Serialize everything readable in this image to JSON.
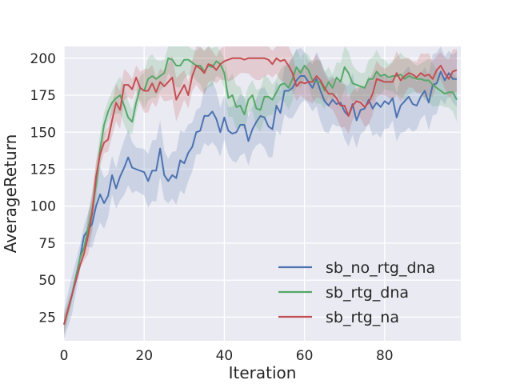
{
  "chart_data": {
    "type": "line",
    "title": "",
    "xlabel": "Iteration",
    "ylabel": "AverageReturn",
    "xlim": [
      0,
      99
    ],
    "ylim": [
      9,
      208
    ],
    "xticks": [
      0,
      20,
      40,
      60,
      80
    ],
    "yticks": [
      25,
      50,
      75,
      100,
      125,
      150,
      175,
      200
    ],
    "grid": true,
    "legend_position": "lower-right",
    "background": "#eaeaf2",
    "series": [
      {
        "name": "sb_no_rtg_dna",
        "color": "#4c72b0",
        "points": [
          [
            0,
            20
          ],
          [
            2,
            40
          ],
          [
            4,
            65
          ],
          [
            5,
            80
          ],
          [
            7,
            88
          ],
          [
            8,
            100
          ],
          [
            9,
            108
          ],
          [
            10,
            102
          ],
          [
            11,
            107
          ],
          [
            12,
            121
          ],
          [
            13,
            112
          ],
          [
            14,
            120
          ],
          [
            15,
            126
          ],
          [
            16,
            133
          ],
          [
            17,
            126
          ],
          [
            18,
            125
          ],
          [
            20,
            123
          ],
          [
            21,
            117
          ],
          [
            22,
            124
          ],
          [
            23,
            124
          ],
          [
            24,
            139
          ],
          [
            25,
            121
          ],
          [
            26,
            117
          ],
          [
            27,
            121
          ],
          [
            28,
            119
          ],
          [
            29,
            131
          ],
          [
            30,
            129
          ],
          [
            31,
            136
          ],
          [
            32,
            140
          ],
          [
            33,
            150
          ],
          [
            34,
            151
          ],
          [
            35,
            161
          ],
          [
            36,
            161
          ],
          [
            37,
            164
          ],
          [
            38,
            159
          ],
          [
            39,
            150
          ],
          [
            40,
            160
          ],
          [
            41,
            151
          ],
          [
            42,
            149
          ],
          [
            43,
            150
          ],
          [
            44,
            155
          ],
          [
            45,
            155
          ],
          [
            46,
            144
          ],
          [
            47,
            152
          ],
          [
            48,
            157
          ],
          [
            49,
            161
          ],
          [
            50,
            160
          ],
          [
            51,
            154
          ],
          [
            52,
            152
          ],
          [
            53,
            168
          ],
          [
            54,
            163
          ],
          [
            55,
            178
          ],
          [
            56,
            178
          ],
          [
            57,
            180
          ],
          [
            58,
            185
          ],
          [
            59,
            188
          ],
          [
            60,
            188
          ],
          [
            61,
            184
          ],
          [
            62,
            180
          ],
          [
            63,
            186
          ],
          [
            64,
            178
          ],
          [
            65,
            171
          ],
          [
            66,
            168
          ],
          [
            67,
            172
          ],
          [
            68,
            169
          ],
          [
            69,
            170
          ],
          [
            70,
            164
          ],
          [
            71,
            161
          ],
          [
            72,
            169
          ],
          [
            73,
            158
          ],
          [
            74,
            165
          ],
          [
            75,
            166
          ],
          [
            76,
            172
          ],
          [
            77,
            166
          ],
          [
            78,
            170
          ],
          [
            79,
            167
          ],
          [
            80,
            171
          ],
          [
            81,
            169
          ],
          [
            82,
            173
          ],
          [
            83,
            160
          ],
          [
            84,
            168
          ],
          [
            85,
            171
          ],
          [
            86,
            174
          ],
          [
            87,
            169
          ],
          [
            88,
            168
          ],
          [
            89,
            174
          ],
          [
            90,
            178
          ],
          [
            91,
            170
          ],
          [
            92,
            182
          ],
          [
            93,
            183
          ],
          [
            94,
            191
          ],
          [
            95,
            185
          ],
          [
            96,
            190
          ],
          [
            97,
            186
          ],
          [
            98,
            186
          ]
        ]
      },
      {
        "name": "sb_rtg_dna",
        "color": "#55a868",
        "points": [
          [
            0,
            20
          ],
          [
            2,
            40
          ],
          [
            4,
            65
          ],
          [
            5,
            72
          ],
          [
            6,
            85
          ],
          [
            7,
            97
          ],
          [
            8,
            115
          ],
          [
            9,
            138
          ],
          [
            10,
            155
          ],
          [
            11,
            164
          ],
          [
            12,
            170
          ],
          [
            13,
            173
          ],
          [
            14,
            175
          ],
          [
            15,
            168
          ],
          [
            16,
            160
          ],
          [
            17,
            157
          ],
          [
            18,
            170
          ],
          [
            19,
            180
          ],
          [
            20,
            178
          ],
          [
            21,
            186
          ],
          [
            22,
            188
          ],
          [
            23,
            186
          ],
          [
            24,
            188
          ],
          [
            25,
            190
          ],
          [
            26,
            200
          ],
          [
            27,
            199
          ],
          [
            28,
            195
          ],
          [
            29,
            195
          ],
          [
            30,
            199
          ],
          [
            31,
            199
          ],
          [
            32,
            197
          ],
          [
            33,
            195
          ],
          [
            34,
            195
          ],
          [
            35,
            191
          ],
          [
            36,
            195
          ],
          [
            37,
            194
          ],
          [
            38,
            198
          ],
          [
            39,
            196
          ],
          [
            40,
            190
          ],
          [
            41,
            173
          ],
          [
            42,
            175
          ],
          [
            43,
            167
          ],
          [
            44,
            168
          ],
          [
            45,
            162
          ],
          [
            46,
            172
          ],
          [
            47,
            175
          ],
          [
            48,
            166
          ],
          [
            49,
            165
          ],
          [
            50,
            174
          ],
          [
            51,
            174
          ],
          [
            52,
            172
          ],
          [
            53,
            177
          ],
          [
            54,
            182
          ],
          [
            55,
            183
          ],
          [
            56,
            180
          ],
          [
            57,
            186
          ],
          [
            58,
            194
          ],
          [
            59,
            190
          ],
          [
            60,
            195
          ],
          [
            61,
            192
          ],
          [
            62,
            185
          ],
          [
            63,
            184
          ],
          [
            64,
            184
          ],
          [
            65,
            178
          ],
          [
            66,
            184
          ],
          [
            67,
            180
          ],
          [
            68,
            187
          ],
          [
            69,
            184
          ],
          [
            70,
            194
          ],
          [
            71,
            190
          ],
          [
            72,
            183
          ],
          [
            73,
            182
          ],
          [
            74,
            181
          ],
          [
            75,
            180
          ],
          [
            76,
            186
          ],
          [
            77,
            186
          ],
          [
            78,
            191
          ],
          [
            79,
            188
          ],
          [
            80,
            189
          ],
          [
            81,
            187
          ],
          [
            82,
            188
          ],
          [
            83,
            188
          ],
          [
            84,
            189
          ],
          [
            85,
            186
          ],
          [
            86,
            188
          ],
          [
            87,
            187
          ],
          [
            88,
            186
          ],
          [
            89,
            186
          ],
          [
            90,
            185
          ],
          [
            91,
            185
          ],
          [
            92,
            182
          ],
          [
            93,
            180
          ],
          [
            94,
            178
          ],
          [
            95,
            176
          ],
          [
            96,
            177
          ],
          [
            97,
            177
          ],
          [
            98,
            172
          ]
        ]
      },
      {
        "name": "sb_rtg_na",
        "color": "#c44e52",
        "points": [
          [
            0,
            20
          ],
          [
            2,
            40
          ],
          [
            4,
            60
          ],
          [
            5,
            68
          ],
          [
            6,
            80
          ],
          [
            7,
            95
          ],
          [
            8,
            120
          ],
          [
            9,
            135
          ],
          [
            10,
            143
          ],
          [
            11,
            145
          ],
          [
            12,
            158
          ],
          [
            13,
            170
          ],
          [
            14,
            165
          ],
          [
            15,
            182
          ],
          [
            16,
            182
          ],
          [
            17,
            179
          ],
          [
            18,
            187
          ],
          [
            19,
            180
          ],
          [
            20,
            178
          ],
          [
            21,
            178
          ],
          [
            22,
            183
          ],
          [
            23,
            177
          ],
          [
            24,
            184
          ],
          [
            25,
            181
          ],
          [
            26,
            184
          ],
          [
            27,
            187
          ],
          [
            28,
            172
          ],
          [
            29,
            177
          ],
          [
            30,
            182
          ],
          [
            31,
            175
          ],
          [
            32,
            188
          ],
          [
            33,
            195
          ],
          [
            34,
            193
          ],
          [
            35,
            190
          ],
          [
            36,
            196
          ],
          [
            37,
            195
          ],
          [
            38,
            192
          ],
          [
            39,
            196
          ],
          [
            40,
            198
          ],
          [
            41,
            199
          ],
          [
            42,
            200
          ],
          [
            43,
            200
          ],
          [
            44,
            200
          ],
          [
            45,
            199
          ],
          [
            46,
            200
          ],
          [
            47,
            200
          ],
          [
            48,
            200
          ],
          [
            49,
            200
          ],
          [
            50,
            200
          ],
          [
            51,
            199
          ],
          [
            52,
            196
          ],
          [
            53,
            200
          ],
          [
            54,
            198
          ],
          [
            55,
            199
          ],
          [
            56,
            195
          ],
          [
            57,
            190
          ],
          [
            58,
            181
          ],
          [
            59,
            184
          ],
          [
            60,
            183
          ],
          [
            61,
            184
          ],
          [
            62,
            184
          ],
          [
            63,
            188
          ],
          [
            64,
            185
          ],
          [
            65,
            180
          ],
          [
            66,
            176
          ],
          [
            67,
            176
          ],
          [
            68,
            173
          ],
          [
            69,
            168
          ],
          [
            70,
            168
          ],
          [
            71,
            161
          ],
          [
            72,
            168
          ],
          [
            73,
            171
          ],
          [
            74,
            170
          ],
          [
            75,
            167
          ],
          [
            76,
            170
          ],
          [
            77,
            176
          ],
          [
            78,
            186
          ],
          [
            79,
            185
          ],
          [
            80,
            184
          ],
          [
            81,
            184
          ],
          [
            82,
            184
          ],
          [
            83,
            190
          ],
          [
            84,
            185
          ],
          [
            85,
            188
          ],
          [
            86,
            190
          ],
          [
            87,
            189
          ],
          [
            88,
            187
          ],
          [
            89,
            190
          ],
          [
            90,
            188
          ],
          [
            91,
            189
          ],
          [
            92,
            186
          ],
          [
            93,
            192
          ],
          [
            94,
            195
          ],
          [
            95,
            190
          ],
          [
            96,
            186
          ],
          [
            97,
            191
          ],
          [
            98,
            192
          ]
        ]
      }
    ]
  }
}
